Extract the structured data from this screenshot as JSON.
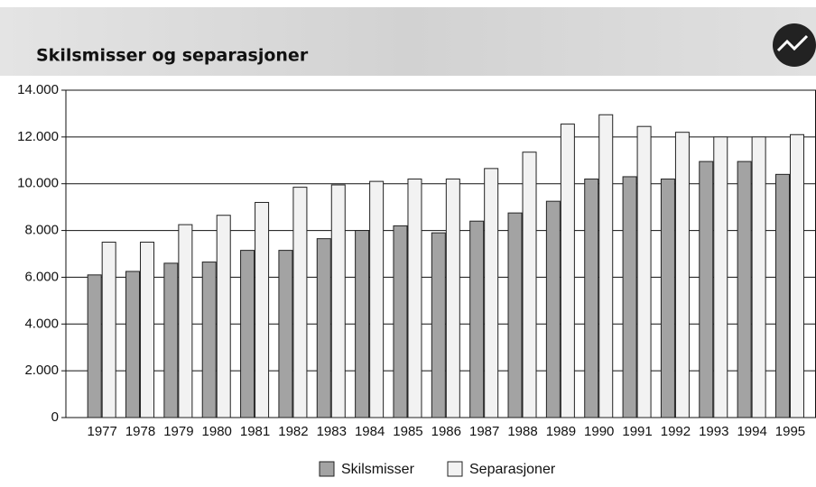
{
  "chart_data": {
    "type": "bar",
    "title": "Skilsmisser og separasjoner",
    "categories": [
      "1977",
      "1978",
      "1979",
      "1980",
      "1981",
      "1982",
      "1983",
      "1984",
      "1985",
      "1986",
      "1987",
      "1988",
      "1989",
      "1990",
      "1991",
      "1992",
      "1993",
      "1994",
      "1995"
    ],
    "series": [
      {
        "name": "Skilsmisser",
        "color": "#a3a3a3",
        "values": [
          6100,
          6250,
          6600,
          6650,
          7150,
          7150,
          7650,
          8000,
          8200,
          7900,
          8400,
          8750,
          9250,
          10200,
          10300,
          10200,
          10950,
          10950,
          10400
        ]
      },
      {
        "name": "Separasjoner",
        "color": "#f2f2f2",
        "values": [
          7500,
          7500,
          8250,
          8650,
          9200,
          9850,
          9950,
          10100,
          10200,
          10200,
          10650,
          11350,
          12550,
          12950,
          12450,
          12200,
          12000,
          12000,
          12100
        ]
      }
    ],
    "ylim": [
      0,
      14000
    ],
    "yticks": [
      0,
      {
        "value": 2000,
        "label": "2.000"
      },
      {
        "value": 4000,
        "label": "4.000"
      },
      {
        "value": 6000,
        "label": "6.000"
      },
      {
        "value": 8000,
        "label": "8.000"
      },
      {
        "value": 10000,
        "label": "10.000"
      },
      {
        "value": 12000,
        "label": "12.000"
      },
      {
        "value": 14000,
        "label": "14.000"
      }
    ],
    "grid": true,
    "legend": "bottom"
  }
}
